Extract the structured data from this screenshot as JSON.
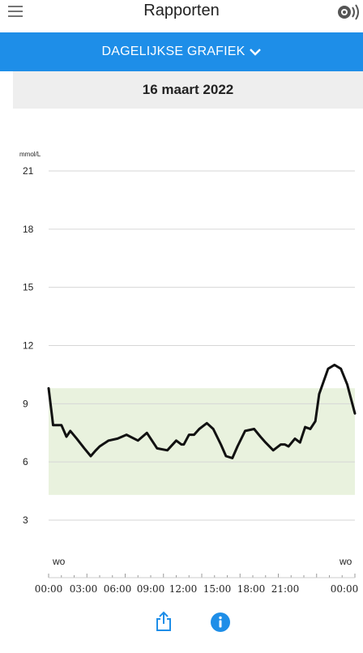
{
  "header": {
    "title": "Rapporten"
  },
  "report_selector": {
    "label": "DAGELIJKSE GRAFIEK"
  },
  "date": {
    "label": "16 maart 2022"
  },
  "colors": {
    "accent": "#1e8ee8",
    "target_range_fill": "#e9f2de",
    "line": "#111111",
    "grid": "#d6d6d6",
    "date_bar_bg": "#eeeeee"
  },
  "icons": {
    "menu": "hamburger-menu-icon",
    "sensor": "sensor-scan-icon",
    "dropdown": "chevron-down-icon",
    "share": "share-icon",
    "info": "info-icon"
  },
  "chart_data": {
    "type": "line",
    "ylabel": "mmol/L",
    "ylim": [
      0,
      21
    ],
    "yticks": [
      3,
      6,
      9,
      12,
      15,
      18,
      21
    ],
    "ytick_labels": [
      "3",
      "6",
      "9",
      "12",
      "15",
      "18",
      "21"
    ],
    "xlim": [
      0,
      24
    ],
    "xticks": [
      "00:00",
      "03:00",
      "06:00",
      "09:00",
      "12:00",
      "15:00",
      "18:00",
      "21:00",
      "00:00"
    ],
    "day_labels": [
      "wo",
      "wo"
    ],
    "target_range": [
      4.3,
      9.8
    ],
    "grid": true,
    "series": [
      {
        "x": [
          0,
          0.28,
          0.35,
          1.0,
          1.4,
          1.7,
          2.2,
          2.8,
          3.3,
          3.7,
          4.0,
          4.7,
          5.4,
          6.1,
          7.0,
          7.7,
          8.5,
          9.3,
          10.0,
          10.4,
          10.6,
          11.0,
          11.4,
          11.8,
          12.4,
          12.9,
          13.5,
          13.9,
          14.4,
          14.8,
          15.4,
          16.1,
          16.6,
          17.0,
          17.6,
          18.2,
          18.5,
          18.8,
          19.3,
          19.7,
          20.1,
          20.5,
          20.9,
          21.2,
          21.9,
          22.4,
          22.9,
          23.4,
          23.8,
          24.0
        ],
        "y": [
          9.8,
          8.3,
          7.9,
          7.9,
          7.3,
          7.6,
          7.2,
          6.7,
          6.3,
          6.6,
          6.8,
          7.1,
          7.2,
          7.4,
          7.1,
          7.5,
          6.7,
          6.6,
          7.1,
          6.9,
          6.9,
          7.4,
          7.4,
          7.7,
          8.0,
          7.7,
          6.9,
          6.3,
          6.2,
          6.8,
          7.6,
          7.7,
          7.3,
          7.0,
          6.6,
          6.9,
          6.9,
          6.8,
          7.2,
          7.0,
          7.8,
          7.7,
          8.1,
          9.5,
          10.8,
          11.0,
          10.8,
          10.0,
          9.0,
          8.5
        ]
      }
    ]
  }
}
